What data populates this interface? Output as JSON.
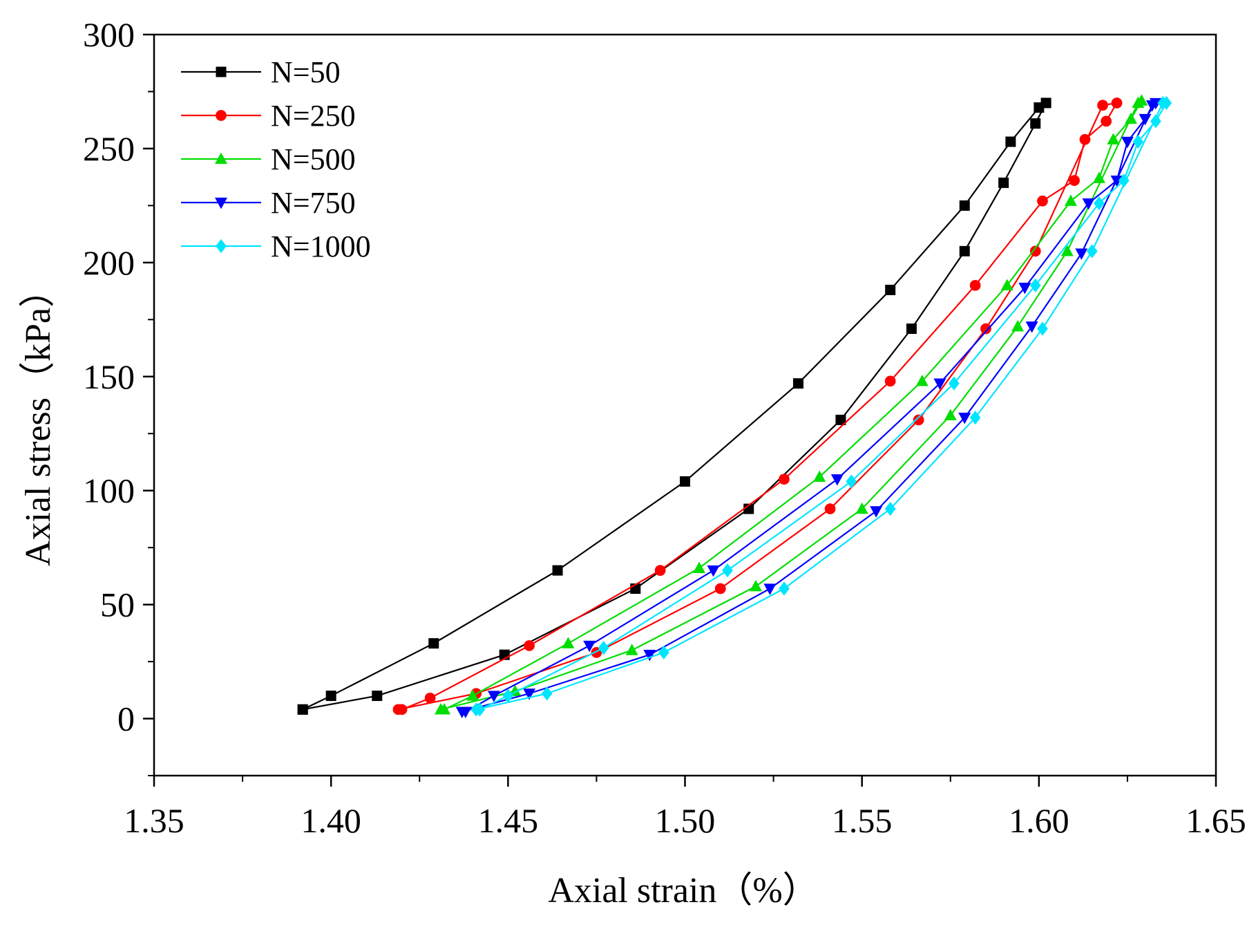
{
  "chart_data": {
    "type": "line",
    "title": "",
    "xlabel": "Axial strain（%）",
    "ylabel": "Axial stress（kPa）",
    "xlim": [
      1.35,
      1.65
    ],
    "ylim": [
      -25,
      300
    ],
    "xticks": [
      "1.35",
      "1.40",
      "1.45",
      "1.50",
      "1.55",
      "1.60",
      "1.65"
    ],
    "xtick_values": [
      1.35,
      1.4,
      1.45,
      1.5,
      1.55,
      1.6,
      1.65
    ],
    "yticks": [
      "0",
      "50",
      "100",
      "150",
      "200",
      "250",
      "300"
    ],
    "ytick_values": [
      0,
      50,
      100,
      150,
      200,
      250,
      300
    ],
    "grid": false,
    "legend_position": "top-left",
    "series": [
      {
        "name": "N=50",
        "color": "#000000",
        "marker": "square",
        "x": [
          1.392,
          1.4,
          1.429,
          1.464,
          1.5,
          1.532,
          1.558,
          1.579,
          1.592,
          1.6,
          1.602,
          1.599,
          1.59,
          1.579,
          1.564,
          1.544,
          1.518,
          1.486,
          1.449,
          1.413,
          1.392
        ],
        "y": [
          4,
          10,
          33,
          65,
          104,
          147,
          188,
          225,
          253,
          268,
          270,
          261,
          235,
          205,
          171,
          131,
          92,
          57,
          28,
          10,
          4
        ]
      },
      {
        "name": "N=250",
        "color": "#ff0000",
        "marker": "circle",
        "x": [
          1.42,
          1.428,
          1.456,
          1.493,
          1.528,
          1.558,
          1.582,
          1.601,
          1.61,
          1.613,
          1.619,
          1.622,
          1.618,
          1.599,
          1.585,
          1.566,
          1.541,
          1.51,
          1.475,
          1.441,
          1.419
        ],
        "y": [
          4,
          9,
          32,
          65,
          105,
          148,
          190,
          227,
          236,
          254,
          262,
          270,
          269,
          205,
          171,
          131,
          92,
          57,
          29,
          11,
          4
        ]
      },
      {
        "name": "N=500",
        "color": "#00dd00",
        "marker": "triangle-up",
        "x": [
          1.432,
          1.44,
          1.467,
          1.504,
          1.538,
          1.567,
          1.591,
          1.609,
          1.617,
          1.621,
          1.626,
          1.629,
          1.628,
          1.608,
          1.594,
          1.575,
          1.55,
          1.52,
          1.485,
          1.452,
          1.431
        ],
        "y": [
          4,
          10,
          33,
          66,
          106,
          148,
          190,
          227,
          237,
          254,
          263,
          271,
          270,
          205,
          172,
          133,
          92,
          58,
          30,
          12,
          4
        ]
      },
      {
        "name": "N=750",
        "color": "#0000ff",
        "marker": "triangle-down",
        "x": [
          1.438,
          1.446,
          1.473,
          1.508,
          1.543,
          1.572,
          1.596,
          1.614,
          1.622,
          1.625,
          1.63,
          1.633,
          1.632,
          1.612,
          1.598,
          1.579,
          1.554,
          1.524,
          1.49,
          1.456,
          1.437
        ],
        "y": [
          3,
          10,
          32,
          65,
          105,
          147,
          189,
          226,
          236,
          253,
          263,
          270,
          269,
          204,
          172,
          132,
          91,
          57,
          28,
          11,
          3
        ]
      },
      {
        "name": "N=1000",
        "color": "#00e5ff",
        "marker": "diamond",
        "x": [
          1.442,
          1.45,
          1.477,
          1.512,
          1.547,
          1.576,
          1.599,
          1.617,
          1.624,
          1.628,
          1.633,
          1.636,
          1.635,
          1.615,
          1.601,
          1.582,
          1.558,
          1.528,
          1.494,
          1.461,
          1.441
        ],
        "y": [
          4,
          10,
          31,
          65,
          104,
          147,
          190,
          226,
          236,
          253,
          262,
          270,
          270,
          205,
          171,
          132,
          92,
          57,
          29,
          11,
          4
        ]
      }
    ]
  }
}
